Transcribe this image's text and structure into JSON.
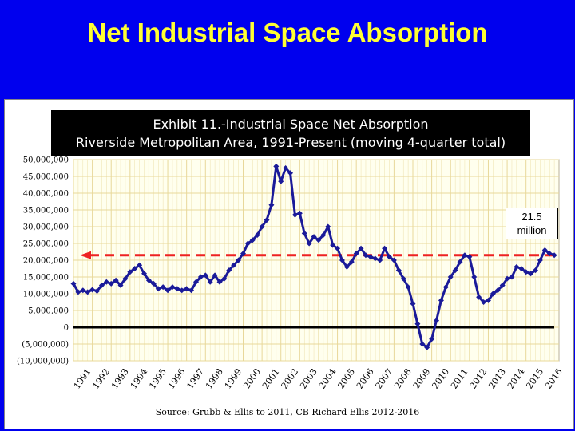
{
  "slide": {
    "title": "Net Industrial Space Absorption"
  },
  "exhibit": {
    "line1": "Exhibit 11.-Industrial Space Net Absorption",
    "line2": "Riverside Metropolitan Area, 1991-Present   (moving 4-quarter total)"
  },
  "source": "Source:  Grubb & Ellis to 2011, CB Richard Ellis 2012-2016",
  "callout": {
    "value": "21.5",
    "unit": "million"
  },
  "colors": {
    "background": "#0000ee",
    "title": "#ffff33",
    "series": "#1a1a99",
    "reference": "#ee2222",
    "plot_bg": "#ffffee",
    "grid": "#e8d89a"
  },
  "chart_data": {
    "type": "line",
    "y_tick_labels": [
      "50,000,000",
      "45,000,000",
      "40,000,000",
      "35,000,000",
      "30,000,000",
      "25,000,000",
      "20,000,000",
      "15,000,000",
      "10,000,000",
      "5,000,000",
      "0",
      "(5,000,000)",
      "(10,000,000)"
    ],
    "x_tick_labels": [
      "1991",
      "1992",
      "1993",
      "1994",
      "1995",
      "1996",
      "1997",
      "1998",
      "1999",
      "2000",
      "2001",
      "2002",
      "2003",
      "2004",
      "2005",
      "2006",
      "2007",
      "2008",
      "2009",
      "2010",
      "2011",
      "2012",
      "2013",
      "2014",
      "2015",
      "2016"
    ],
    "ylim": [
      -10000000,
      50000000
    ],
    "xlim": [
      1991,
      2016.75
    ],
    "grid": true,
    "reference_line": {
      "value": 21500000,
      "style": "dashed",
      "arrow": "left"
    },
    "series": [
      {
        "x": [
          1991.0,
          1991.25,
          1991.5,
          1991.75,
          1992.0,
          1992.25,
          1992.5,
          1992.75,
          1993.0,
          1993.25,
          1993.5,
          1993.75,
          1994.0,
          1994.25,
          1994.5,
          1994.75,
          1995.0,
          1995.25,
          1995.5,
          1995.75,
          1996.0,
          1996.25,
          1996.5,
          1996.75,
          1997.0,
          1997.25,
          1997.5,
          1997.75,
          1998.0,
          1998.25,
          1998.5,
          1998.75,
          1999.0,
          1999.25,
          1999.5,
          1999.75,
          2000.0,
          2000.25,
          2000.5,
          2000.75,
          2001.0,
          2001.25,
          2001.5,
          2001.75,
          2002.0,
          2002.25,
          2002.5,
          2002.75,
          2003.0,
          2003.25,
          2003.5,
          2003.75,
          2004.0,
          2004.25,
          2004.5,
          2004.75,
          2005.0,
          2005.25,
          2005.5,
          2005.75,
          2006.0,
          2006.25,
          2006.5,
          2006.75,
          2007.0,
          2007.25,
          2007.5,
          2007.75,
          2008.0,
          2008.25,
          2008.5,
          2008.75,
          2009.0,
          2009.25,
          2009.5,
          2009.75,
          2010.0,
          2010.25,
          2010.5,
          2010.75,
          2011.0,
          2011.25,
          2011.5,
          2011.75,
          2012.0,
          2012.25,
          2012.5,
          2012.75,
          2013.0,
          2013.25,
          2013.5,
          2013.75,
          2014.0,
          2014.25,
          2014.5,
          2014.75,
          2015.0,
          2015.25,
          2015.5,
          2015.75,
          2016.0,
          2016.25,
          2016.5
        ],
        "y": [
          13000000,
          10500000,
          11000000,
          10500000,
          11200000,
          10800000,
          12500000,
          13500000,
          13000000,
          14000000,
          12500000,
          14500000,
          16500000,
          17500000,
          18500000,
          16000000,
          14000000,
          13000000,
          11500000,
          12000000,
          11000000,
          12000000,
          11500000,
          11000000,
          11500000,
          11000000,
          13500000,
          15000000,
          15500000,
          13500000,
          15500000,
          13500000,
          14500000,
          17000000,
          18500000,
          20000000,
          22000000,
          25000000,
          26000000,
          27500000,
          30000000,
          32000000,
          36500000,
          48000000,
          43500000,
          47500000,
          46000000,
          33500000,
          34000000,
          28000000,
          25000000,
          27000000,
          26000000,
          27500000,
          30000000,
          24500000,
          23500000,
          20000000,
          18000000,
          19500000,
          22000000,
          23500000,
          21500000,
          21000000,
          20500000,
          20000000,
          23500000,
          21000000,
          20000000,
          17000000,
          14500000,
          12000000,
          7000000,
          1000000,
          -5000000,
          -6000000,
          -3500000,
          2000000,
          8000000,
          12000000,
          15000000,
          17000000,
          19500000,
          21500000,
          21000000,
          15000000,
          9000000,
          7500000,
          8000000,
          10000000,
          11000000,
          12500000,
          14500000,
          15000000,
          18000000,
          17500000,
          16500000,
          16000000,
          17000000,
          20000000,
          23000000,
          22000000,
          21500000
        ]
      }
    ]
  }
}
